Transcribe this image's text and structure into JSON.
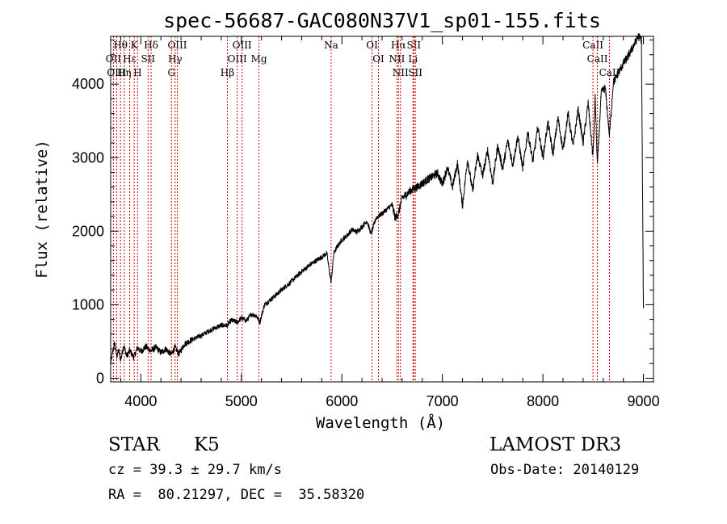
{
  "chart_data": {
    "type": "line",
    "title": "spec-56687-GAC080N37V1_sp01-155.fits",
    "xlabel": "Wavelength (Å)",
    "ylabel": "Flux (relative)",
    "xlim": [
      3700,
      9100
    ],
    "ylim": [
      -50,
      4650
    ],
    "xticks": [
      4000,
      5000,
      6000,
      7000,
      8000,
      9000
    ],
    "xtick_labels": [
      "4000",
      "5000",
      "6000",
      "7000",
      "8000",
      "9000"
    ],
    "yticks": [
      0,
      1000,
      2000,
      3000,
      4000
    ],
    "ytick_labels": [
      "0",
      "1000",
      "2000",
      "3000",
      "4000"
    ],
    "grid": false,
    "line_color": "#000000",
    "marker_color": "#cc0000",
    "series": [
      {
        "name": "flux",
        "x": [
          3700,
          3720,
          3740,
          3760,
          3780,
          3800,
          3830,
          3860,
          3890,
          3930,
          3968,
          4000,
          4050,
          4102,
          4150,
          4200,
          4250,
          4300,
          4340,
          4380,
          4430,
          4500,
          4600,
          4700,
          4800,
          4861,
          4900,
          4960,
          5000,
          5050,
          5100,
          5150,
          5183,
          5230,
          5300,
          5400,
          5500,
          5600,
          5700,
          5800,
          5850,
          5893,
          5920,
          5950,
          6000,
          6050,
          6100,
          6150,
          6200,
          6250,
          6290,
          6340,
          6400,
          6450,
          6500,
          6530,
          6563,
          6600,
          6650,
          6700,
          6750,
          6800,
          6850,
          6900,
          6950,
          7000,
          7050,
          7100,
          7150,
          7200,
          7250,
          7300,
          7350,
          7400,
          7450,
          7500,
          7550,
          7600,
          7650,
          7700,
          7750,
          7800,
          7850,
          7900,
          7950,
          8000,
          8050,
          8100,
          8150,
          8200,
          8250,
          8300,
          8350,
          8400,
          8450,
          8498,
          8520,
          8542,
          8580,
          8620,
          8662,
          8700,
          8750,
          8800,
          8850,
          8900,
          8950,
          8980,
          9000
        ],
        "y": [
          200,
          350,
          480,
          300,
          380,
          250,
          450,
          300,
          380,
          280,
          420,
          360,
          430,
          370,
          420,
          350,
          400,
          320,
          420,
          330,
          460,
          520,
          580,
          660,
          720,
          720,
          790,
          760,
          820,
          780,
          870,
          850,
          760,
          1000,
          1080,
          1200,
          1320,
          1450,
          1560,
          1650,
          1700,
          1300,
          1700,
          1780,
          1880,
          1940,
          2020,
          1990,
          2060,
          2140,
          1960,
          2180,
          2240,
          2300,
          2360,
          2180,
          2240,
          2450,
          2510,
          2570,
          2600,
          2650,
          2700,
          2740,
          2790,
          2640,
          2870,
          2600,
          2920,
          2340,
          2980,
          2540,
          3040,
          2750,
          3100,
          2650,
          3160,
          2850,
          3230,
          2900,
          3290,
          2850,
          3350,
          2950,
          3410,
          3000,
          3480,
          3050,
          3540,
          3100,
          3600,
          3150,
          3660,
          3200,
          3740,
          3000,
          3820,
          2900,
          3880,
          3950,
          3300,
          4020,
          4150,
          4280,
          4380,
          4520,
          4650,
          4600,
          900
        ]
      }
    ],
    "lines": [
      {
        "label": "Hθ",
        "x": 3798
      },
      {
        "label": "OII",
        "x": 3727
      },
      {
        "label": "OIII",
        "x": 3760
      },
      {
        "label": "K",
        "x": 3934
      },
      {
        "label": "Hε",
        "x": 3889
      },
      {
        "label": "Hη",
        "x": 3835
      },
      {
        "label": "H",
        "x": 3968
      },
      {
        "label": "Hδ",
        "x": 4102
      },
      {
        "label": "SII",
        "x": 4072
      },
      {
        "label": "OIII",
        "x": 4363
      },
      {
        "label": "Hγ",
        "x": 4341
      },
      {
        "label": "G",
        "x": 4305
      },
      {
        "label": "OIII",
        "x": 5007
      },
      {
        "label": "OIII",
        "x": 4959
      },
      {
        "label": "Hβ",
        "x": 4861
      },
      {
        "label": "Mg",
        "x": 5175
      },
      {
        "label": "Na",
        "x": 5893
      },
      {
        "label": "OI",
        "x": 6300
      },
      {
        "label": "OI",
        "x": 6364
      },
      {
        "label": "Hα",
        "x": 6563
      },
      {
        "label": "NII",
        "x": 6548
      },
      {
        "label": "NII",
        "x": 6583
      },
      {
        "label": "SII",
        "x": 6716
      },
      {
        "label": "Li",
        "x": 6708
      },
      {
        "label": "SII",
        "x": 6731
      },
      {
        "label": "CaII",
        "x": 8498
      },
      {
        "label": "CaII",
        "x": 8542
      },
      {
        "label": "CaII",
        "x": 8662
      }
    ]
  },
  "info": {
    "object_class": "STAR",
    "subclass": "K5",
    "survey": "LAMOST DR3",
    "cz": "cz = 39.3 ± 29.7 km/s",
    "obs_date": "Obs-Date: 20140129",
    "coords": "RA =  80.21297, DEC =  35.58320"
  }
}
